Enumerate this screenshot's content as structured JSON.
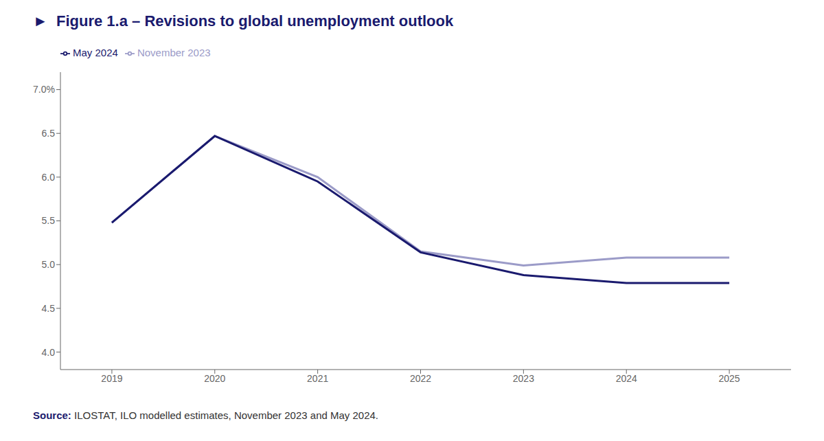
{
  "chart_data": {
    "type": "line",
    "title": "►  Figure 1.a – Revisions to global unemployment outlook",
    "x": [
      2019,
      2020,
      2021,
      2022,
      2023,
      2024,
      2025
    ],
    "xlim": [
      2018.5,
      2025.6
    ],
    "xticks": [
      2019,
      2020,
      2021,
      2022,
      2023,
      2024,
      2025
    ],
    "ylim": [
      3.8,
      7.2
    ],
    "yticks": [
      {
        "value": 4.0,
        "label": "4.0"
      },
      4.5,
      {
        "value": 5.0,
        "label": "5.0"
      },
      5.5,
      {
        "value": 6.0,
        "label": "6.0"
      },
      6.5,
      {
        "value": 7.0,
        "label": "7.0%"
      }
    ],
    "series": [
      {
        "name": "November 2023",
        "color": "#9b9bc8",
        "values": [
          5.48,
          6.47,
          6.0,
          5.15,
          4.99,
          5.08,
          5.08
        ]
      },
      {
        "name": "May 2024",
        "color": "#1a1a6e",
        "values": [
          5.48,
          6.47,
          5.95,
          5.14,
          4.88,
          4.79,
          4.79
        ]
      }
    ],
    "annotations": [
      "Source:",
      "ILOSTAT, ILO modelled estimates, November 2023 and May 2024."
    ],
    "legend": "upper left",
    "grid": false
  }
}
